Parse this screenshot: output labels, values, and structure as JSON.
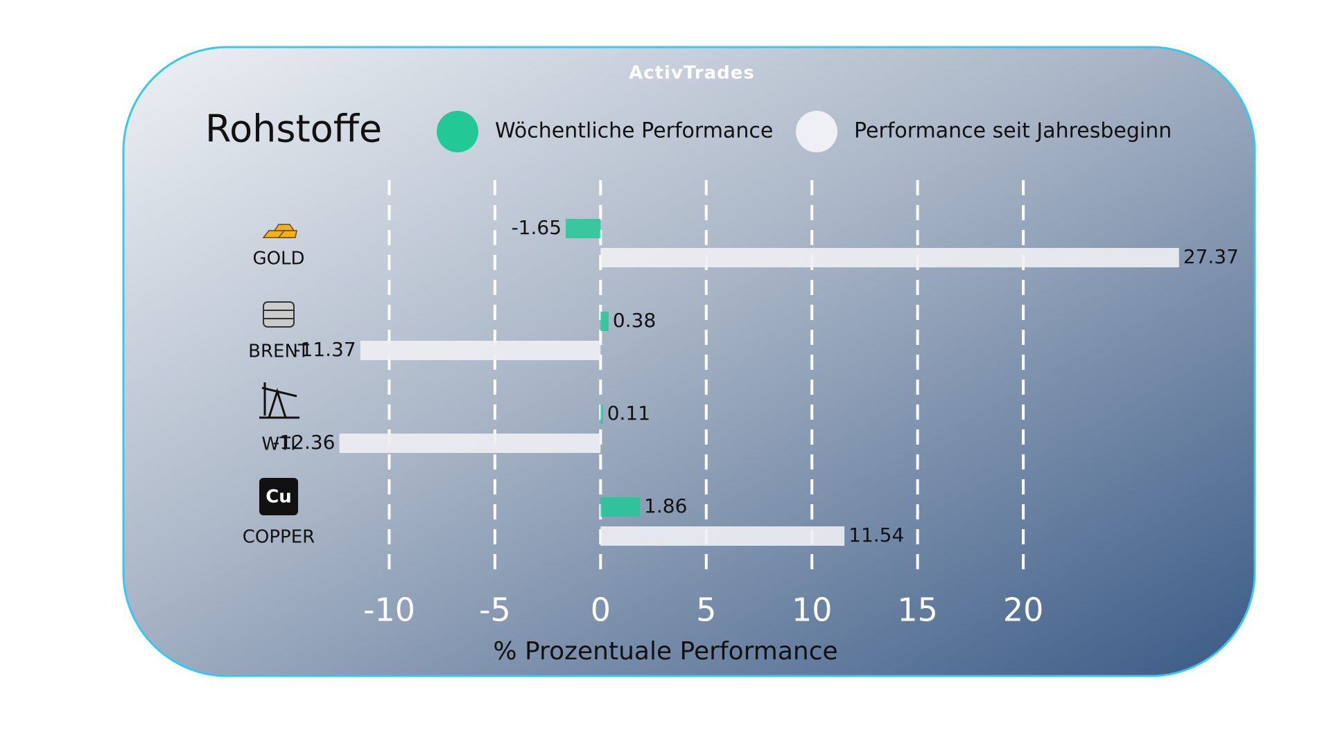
{
  "logo": "ActivTrades",
  "chart_data": {
    "type": "bar",
    "orientation": "horizontal",
    "title": "Rohstoffe",
    "x_label": "% Prozentuale Performance",
    "categories": [
      "GOLD",
      "BRENT",
      "WTI",
      "COPPER"
    ],
    "series": [
      {
        "name": "Wöchentliche Performance",
        "color": "#22c896",
        "values": [
          -1.65,
          0.38,
          0.11,
          1.86
        ]
      },
      {
        "name": "Performance seit Jahresbeginn",
        "color": "#eef0f3",
        "values": [
          27.37,
          -11.37,
          -12.36,
          11.54
        ]
      }
    ],
    "xlim": [
      -13,
      28
    ],
    "xticks": [
      -10,
      -5,
      0,
      5,
      10,
      15,
      20
    ],
    "grid": true
  }
}
